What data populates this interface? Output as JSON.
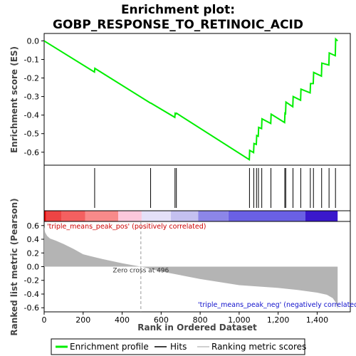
{
  "chart_data": {
    "type": "line",
    "title_line1": "Enrichment plot:",
    "title_line2": "GOBP_RESPONSE_TO_RETINOIC_ACID",
    "ylabel_top": "Enrichment score (ES)",
    "ylabel_bottom": "Ranked list metric (Pearson)",
    "xlabel": "Rank in Ordered Dataset",
    "xlim": [
      0,
      1570
    ],
    "x_ticks": [
      0,
      200,
      400,
      600,
      800,
      1000,
      1200,
      1400
    ],
    "x_tick_labels": [
      "0",
      "200",
      "400",
      "600",
      "800",
      "1,000",
      "1,200",
      "1,400"
    ],
    "es_ylim": [
      -0.67,
      0.04
    ],
    "es_ticks": [
      0.0,
      -0.1,
      -0.2,
      -0.3,
      -0.4,
      -0.5,
      -0.6
    ],
    "es_tick_labels": [
      "0.0",
      "-0.1",
      "-0.2",
      "-0.3",
      "-0.4",
      "-0.5",
      "-0.6"
    ],
    "metric_ylim": [
      -0.66,
      0.66
    ],
    "metric_ticks": [
      0.6,
      0.4,
      0.2,
      0.0,
      -0.2,
      -0.4,
      -0.6
    ],
    "metric_tick_labels": [
      "0.6",
      "0.4",
      "0.2",
      "0.0",
      "-0.2",
      "-0.4",
      "-0.6"
    ],
    "enrichment_profile": {
      "name": "Enrichment profile",
      "color": "#00ee00",
      "x": [
        0,
        258,
        260,
        545,
        547,
        670,
        672,
        677,
        679,
        1052,
        1054,
        1074,
        1076,
        1088,
        1090,
        1098,
        1100,
        1115,
        1117,
        1162,
        1164,
        1233,
        1235,
        1238,
        1240,
        1275,
        1277,
        1315,
        1317,
        1364,
        1366,
        1380,
        1382,
        1422,
        1424,
        1460,
        1462,
        1493,
        1495,
        1505
      ],
      "y": [
        0.0,
        -0.168,
        -0.148,
        -0.335,
        -0.335,
        -0.412,
        -0.39,
        -0.393,
        -0.39,
        -0.64,
        -0.59,
        -0.602,
        -0.553,
        -0.558,
        -0.51,
        -0.514,
        -0.466,
        -0.473,
        -0.42,
        -0.445,
        -0.395,
        -0.44,
        -0.39,
        -0.392,
        -0.33,
        -0.355,
        -0.3,
        -0.32,
        -0.26,
        -0.28,
        -0.23,
        -0.23,
        -0.17,
        -0.19,
        -0.12,
        -0.13,
        -0.065,
        -0.08,
        0.01,
        0.0
      ]
    },
    "hits": {
      "name": "Hits",
      "color": "#000000",
      "x": [
        259,
        546,
        671,
        678,
        1053,
        1075,
        1089,
        1099,
        1116,
        1163,
        1234,
        1239,
        1276,
        1316,
        1365,
        1381,
        1423,
        1461,
        1494
      ]
    },
    "ranking_metric": {
      "name": "Ranking metric scores",
      "color": "#c0c0c0",
      "x": [
        0,
        5,
        15,
        30,
        60,
        100,
        150,
        200,
        300,
        400,
        496,
        600,
        800,
        1000,
        1200,
        1300,
        1400,
        1450,
        1480,
        1495,
        1505
      ],
      "y": [
        0.58,
        0.5,
        0.45,
        0.41,
        0.38,
        0.33,
        0.26,
        0.18,
        0.11,
        0.05,
        0.0,
        -0.07,
        -0.18,
        -0.27,
        -0.31,
        -0.34,
        -0.38,
        -0.41,
        -0.46,
        -0.52,
        -0.62
      ]
    },
    "zero_cross": {
      "x": 496,
      "label": "Zero cross at 496"
    },
    "annotation_pos": "'triple_means_peak_pos' (positively correlated)",
    "annotation_neg": "'triple_means_peak_neg' (negatively correlated)",
    "legend_placement": "bottom",
    "gradient_bar": [
      {
        "from": 0,
        "to": 10,
        "color": "#e80000"
      },
      {
        "from": 10,
        "to": 90,
        "color": "#ee4444"
      },
      {
        "from": 90,
        "to": 210,
        "color": "#f46060"
      },
      {
        "from": 210,
        "to": 380,
        "color": "#f88a8a"
      },
      {
        "from": 380,
        "to": 500,
        "color": "#fcc8dc"
      },
      {
        "from": 500,
        "to": 650,
        "color": "#e4e0f8"
      },
      {
        "from": 650,
        "to": 790,
        "color": "#c4c0f0"
      },
      {
        "from": 790,
        "to": 945,
        "color": "#8c86e8"
      },
      {
        "from": 945,
        "to": 1340,
        "color": "#6a60e4"
      },
      {
        "from": 1340,
        "to": 1505,
        "color": "#3a18cc"
      }
    ]
  }
}
